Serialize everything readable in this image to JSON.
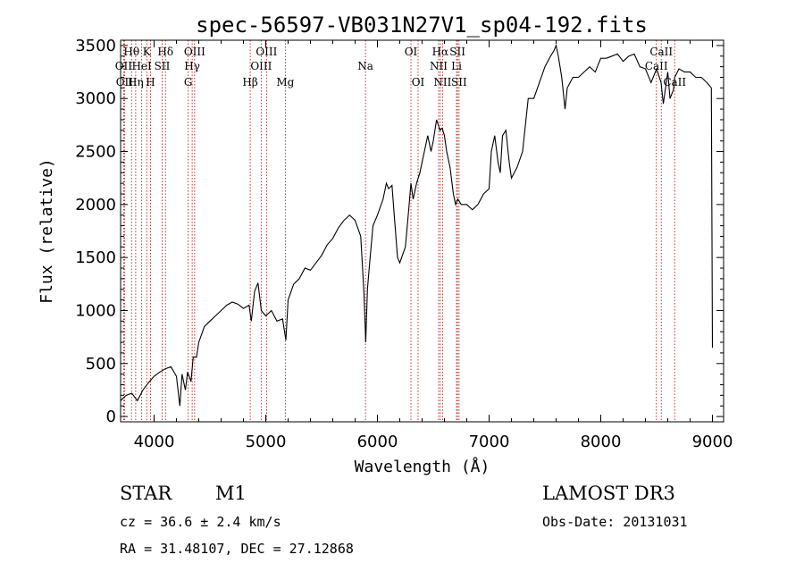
{
  "chart_data": {
    "type": "line",
    "title": "spec-56597-VB031N27V1_sp04-192.fits",
    "xlabel": "Wavelength (Å)",
    "ylabel": "Flux (relative)",
    "xlim": [
      3700,
      9100
    ],
    "ylim": [
      -50,
      3550
    ],
    "xticks": [
      4000,
      5000,
      6000,
      7000,
      8000,
      9000
    ],
    "yticks": [
      0,
      500,
      1000,
      1500,
      2000,
      2500,
      3000,
      3500
    ],
    "series": [
      {
        "name": "spectrum",
        "x": [
          3700,
          3750,
          3800,
          3850,
          3900,
          3950,
          4000,
          4050,
          4100,
          4150,
          4200,
          4230,
          4250,
          4280,
          4300,
          4330,
          4350,
          4380,
          4400,
          4450,
          4500,
          4550,
          4600,
          4650,
          4700,
          4750,
          4800,
          4850,
          4870,
          4900,
          4930,
          4960,
          5000,
          5050,
          5100,
          5150,
          5180,
          5200,
          5250,
          5300,
          5350,
          5400,
          5450,
          5500,
          5550,
          5600,
          5650,
          5700,
          5750,
          5800,
          5850,
          5880,
          5895,
          5910,
          5930,
          5960,
          6000,
          6050,
          6080,
          6100,
          6130,
          6150,
          6180,
          6200,
          6250,
          6280,
          6300,
          6320,
          6350,
          6380,
          6400,
          6430,
          6450,
          6480,
          6500,
          6530,
          6560,
          6580,
          6600,
          6620,
          6650,
          6680,
          6700,
          6720,
          6750,
          6800,
          6850,
          6900,
          6950,
          7000,
          7020,
          7050,
          7080,
          7100,
          7120,
          7150,
          7180,
          7200,
          7250,
          7300,
          7350,
          7400,
          7450,
          7500,
          7550,
          7580,
          7600,
          7620,
          7650,
          7680,
          7700,
          7750,
          7800,
          7850,
          7900,
          7950,
          8000,
          8050,
          8100,
          8150,
          8200,
          8250,
          8300,
          8350,
          8400,
          8450,
          8500,
          8540,
          8560,
          8580,
          8600,
          8620,
          8650,
          8662,
          8700,
          8750,
          8800,
          8850,
          8900,
          8950,
          8990,
          9000
        ],
        "values": [
          150,
          200,
          220,
          150,
          250,
          320,
          380,
          420,
          450,
          470,
          380,
          100,
          400,
          250,
          420,
          330,
          560,
          560,
          700,
          850,
          900,
          950,
          1000,
          1050,
          1080,
          1060,
          1020,
          1050,
          900,
          1180,
          1260,
          1000,
          950,
          1000,
          900,
          920,
          720,
          1100,
          1250,
          1300,
          1400,
          1380,
          1450,
          1520,
          1620,
          1680,
          1780,
          1850,
          1900,
          1850,
          1700,
          1150,
          700,
          1200,
          1450,
          1800,
          1900,
          2050,
          2200,
          2150,
          2180,
          1900,
          1500,
          1450,
          1600,
          1950,
          2200,
          2050,
          2200,
          2300,
          2400,
          2550,
          2650,
          2500,
          2600,
          2800,
          2700,
          2720,
          2650,
          2500,
          2350,
          2100,
          2000,
          2050,
          2000,
          2000,
          1950,
          2000,
          2100,
          2150,
          2500,
          2650,
          2400,
          2300,
          2650,
          2700,
          2400,
          2250,
          2350,
          2500,
          3000,
          3000,
          3150,
          3300,
          3400,
          3450,
          3500,
          3400,
          3200,
          2900,
          3100,
          3200,
          3200,
          3250,
          3300,
          3250,
          3380,
          3380,
          3400,
          3420,
          3350,
          3400,
          3420,
          3300,
          3280,
          3150,
          3280,
          3150,
          2950,
          3100,
          3250,
          3000,
          3080,
          3200,
          3280,
          3250,
          3250,
          3200,
          3200,
          3150,
          3100,
          650
        ]
      }
    ],
    "spectral_lines": [
      {
        "label": "Hθ",
        "x": 3798,
        "row": 1
      },
      {
        "label": "OII",
        "x": 3727,
        "row": 2
      },
      {
        "label": "OII",
        "x": 3735,
        "row": 3
      },
      {
        "label": "Hη",
        "x": 3835,
        "row": 3
      },
      {
        "label": "K",
        "x": 3934,
        "row": 1
      },
      {
        "label": "H",
        "x": 3968,
        "row": 3
      },
      {
        "label": "HeI",
        "x": 3889,
        "row": 2
      },
      {
        "label": "SII",
        "x": 4072,
        "row": 2
      },
      {
        "label": "Hδ",
        "x": 4102,
        "row": 1
      },
      {
        "label": "OIII",
        "x": 4363,
        "row": 1
      },
      {
        "label": "Hγ",
        "x": 4341,
        "row": 2
      },
      {
        "label": "G",
        "x": 4305,
        "row": 3
      },
      {
        "label": "Hβ",
        "x": 4861,
        "row": 3
      },
      {
        "label": "OIII",
        "x": 5007,
        "row": 1
      },
      {
        "label": "OIII",
        "x": 4959,
        "row": 2
      },
      {
        "label": "Mg",
        "x": 5175,
        "row": 3
      },
      {
        "label": "Na",
        "x": 5893,
        "row": 2
      },
      {
        "label": "OI",
        "x": 6300,
        "row": 1
      },
      {
        "label": "OI",
        "x": 6364,
        "row": 3
      },
      {
        "label": "Hα",
        "x": 6563,
        "row": 1
      },
      {
        "label": "SII",
        "x": 6717,
        "row": 1
      },
      {
        "label": "NII",
        "x": 6548,
        "row": 2
      },
      {
        "label": "Li",
        "x": 6708,
        "row": 2
      },
      {
        "label": "NII",
        "x": 6583,
        "row": 3
      },
      {
        "label": "SII",
        "x": 6731,
        "row": 3
      },
      {
        "label": "CaII",
        "x": 8542,
        "row": 1
      },
      {
        "label": "CaII",
        "x": 8498,
        "row": 2
      },
      {
        "label": "CaII",
        "x": 8662,
        "row": 3
      }
    ]
  },
  "info": {
    "object_class": "STAR",
    "subclass": "M1",
    "survey": "LAMOST DR3",
    "redshift": "cz = 36.6 ± 2.4 km/s",
    "obs_date": "Obs-Date: 20131031",
    "coords": "RA =  31.48107, DEC =  27.12868"
  },
  "colors": {
    "spectrum": "#000000",
    "line_markers": "#b22222",
    "axes": "#000000"
  }
}
